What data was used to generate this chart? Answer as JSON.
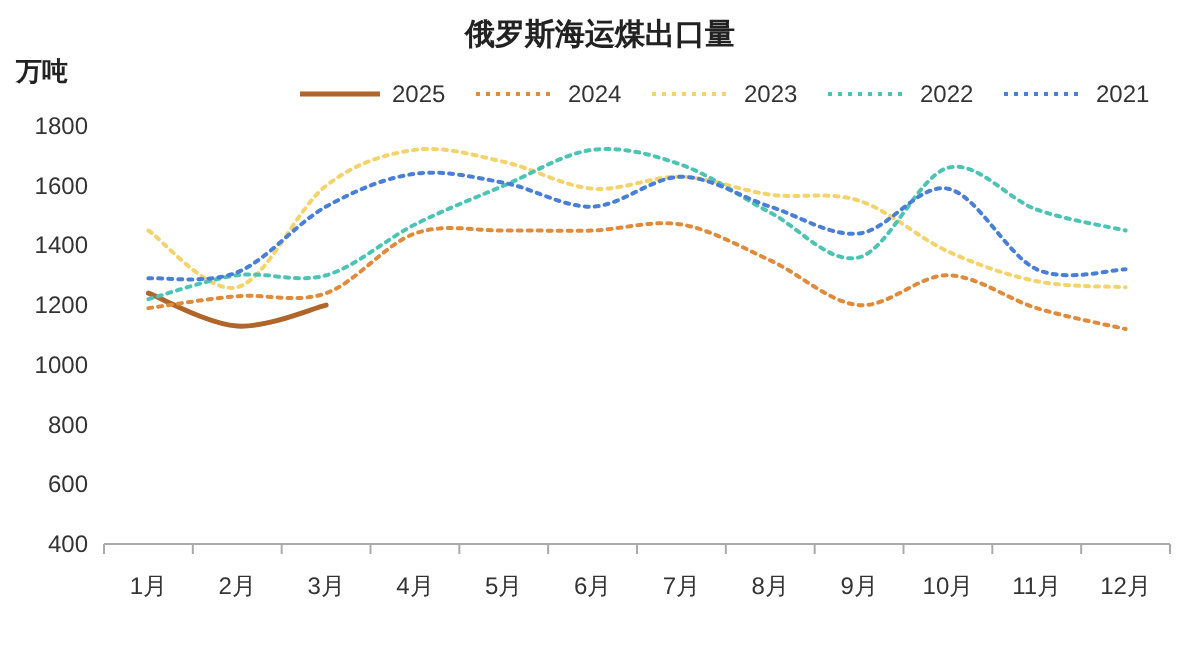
{
  "chart_data": {
    "type": "line",
    "title": "俄罗斯海运煤出口量",
    "ylabel": "万吨",
    "categories": [
      "1月",
      "2月",
      "3月",
      "4月",
      "5月",
      "6月",
      "7月",
      "8月",
      "9月",
      "10月",
      "11月",
      "12月"
    ],
    "series": [
      {
        "name": "2025",
        "color": "#b0652a",
        "line_style": "solid",
        "values": [
          1240,
          1130,
          1200,
          null,
          null,
          null,
          null,
          null,
          null,
          null,
          null,
          null
        ]
      },
      {
        "name": "2024",
        "color": "#e08a3c",
        "line_style": "dotted",
        "values": [
          1190,
          1230,
          1240,
          1440,
          1450,
          1450,
          1470,
          1350,
          1200,
          1300,
          1190,
          1120
        ]
      },
      {
        "name": "2023",
        "color": "#f5d36b",
        "line_style": "dotted",
        "values": [
          1450,
          1260,
          1600,
          1720,
          1680,
          1590,
          1630,
          1570,
          1550,
          1380,
          1280,
          1260
        ]
      },
      {
        "name": "2022",
        "color": "#4cc4b4",
        "line_style": "dotted",
        "values": [
          1220,
          1300,
          1300,
          1470,
          1600,
          1720,
          1670,
          1510,
          1360,
          1660,
          1520,
          1450
        ]
      },
      {
        "name": "2021",
        "color": "#4a7fd8",
        "line_style": "dotted",
        "values": [
          1290,
          1310,
          1530,
          1640,
          1610,
          1530,
          1630,
          1530,
          1440,
          1590,
          1320,
          1320
        ]
      }
    ],
    "ylim": [
      400,
      1800
    ],
    "yticks": [
      400,
      600,
      800,
      1000,
      1200,
      1400,
      1600,
      1800
    ],
    "grid": false,
    "legend": "top",
    "marker": "none"
  }
}
